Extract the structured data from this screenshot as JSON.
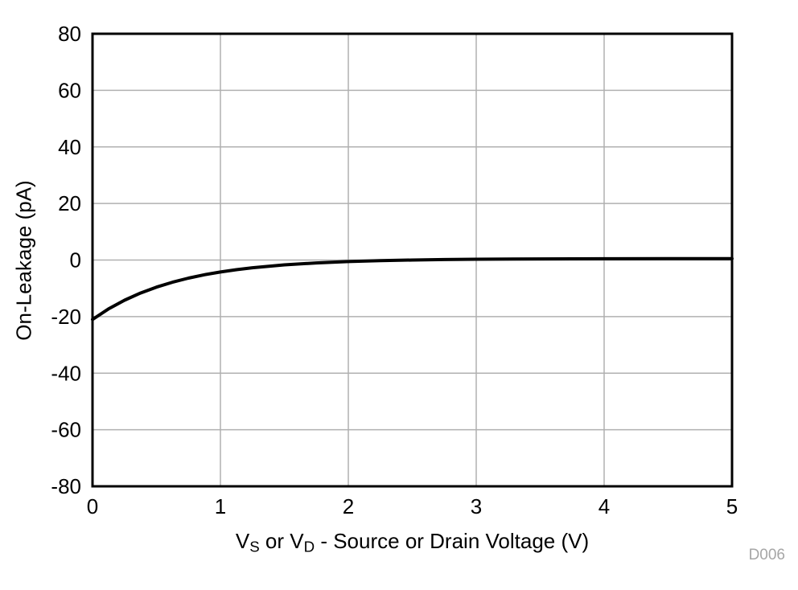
{
  "chart_data": {
    "type": "line",
    "title": "",
    "ylabel": "On-Leakage (pA)",
    "xlabel_parts": {
      "pre": "V",
      "sub1": "S",
      "mid": " or V",
      "sub2": "D",
      "post": " - Source or Drain Voltage (V)"
    },
    "xlim": [
      0,
      5
    ],
    "ylim": [
      -80,
      80
    ],
    "x_ticks": [
      "0",
      "1",
      "2",
      "3",
      "4",
      "5"
    ],
    "x_tick_values": [
      0,
      1,
      2,
      3,
      4,
      5
    ],
    "y_ticks": [
      "-80",
      "-60",
      "-40",
      "-20",
      "0",
      "20",
      "40",
      "60",
      "80"
    ],
    "y_tick_values": [
      -80,
      -60,
      -40,
      -20,
      0,
      20,
      40,
      60,
      80
    ],
    "grid": true,
    "legend": "none",
    "watermark": "D006",
    "colors": {
      "curve": "#000000",
      "grid": "#b0b0b0",
      "border": "#000000",
      "watermark": "#a6a6a6"
    },
    "series": [
      {
        "name": "On-Leakage",
        "x": [
          0,
          0.125,
          0.25,
          0.375,
          0.5,
          0.625,
          0.75,
          0.875,
          1.0,
          1.125,
          1.25,
          1.5,
          1.75,
          2.0,
          2.25,
          2.5,
          2.75,
          3.0,
          3.5,
          4.0,
          4.5,
          5.0
        ],
        "y": [
          -21.0,
          -17.29,
          -14.22,
          -11.68,
          -9.58,
          -7.84,
          -6.4,
          -5.21,
          -4.23,
          -3.41,
          -2.74,
          -1.71,
          -1.02,
          -0.54,
          -0.21,
          0.01,
          0.17,
          0.27,
          0.39,
          0.45,
          0.48,
          0.49
        ]
      }
    ]
  }
}
